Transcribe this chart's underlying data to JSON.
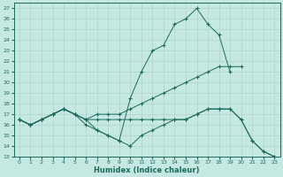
{
  "xlabel": "Humidex (Indice chaleur)",
  "xlim": [
    -0.5,
    23.5
  ],
  "ylim": [
    13,
    27.5
  ],
  "yticks": [
    13,
    14,
    15,
    16,
    17,
    18,
    19,
    20,
    21,
    22,
    23,
    24,
    25,
    26,
    27
  ],
  "xticks": [
    0,
    1,
    2,
    3,
    4,
    5,
    6,
    7,
    8,
    9,
    10,
    11,
    12,
    13,
    14,
    15,
    16,
    17,
    18,
    19,
    20,
    21,
    22,
    23
  ],
  "bg_color": "#c6e8e2",
  "line_color": "#1a6b5a",
  "grid_color": "#b0d4cc",
  "line1_x": [
    0,
    1,
    2,
    3,
    4,
    5,
    6,
    7,
    8,
    9,
    10,
    11,
    12,
    13,
    14,
    15,
    16,
    17,
    18,
    19
  ],
  "line1_y": [
    16.5,
    16.0,
    16.5,
    17.0,
    17.5,
    17.0,
    16.5,
    15.5,
    15.0,
    14.5,
    18.5,
    21.0,
    23.0,
    23.5,
    25.5,
    26.0,
    27.0,
    25.5,
    24.5,
    21.0
  ],
  "line2_x": [
    0,
    1,
    2,
    3,
    4,
    5,
    6,
    7,
    8,
    9,
    10,
    11,
    12,
    13,
    14,
    15,
    16,
    17,
    18,
    19,
    20
  ],
  "line2_y": [
    16.5,
    16.0,
    16.5,
    17.0,
    17.5,
    17.0,
    16.5,
    17.0,
    17.0,
    17.0,
    17.5,
    18.0,
    18.5,
    19.0,
    19.5,
    20.0,
    20.5,
    21.0,
    21.5,
    21.5,
    21.5
  ],
  "line3_x": [
    0,
    1,
    2,
    3,
    4,
    5,
    6,
    7,
    8,
    9,
    10,
    11,
    12,
    13,
    14,
    15,
    16,
    17,
    18,
    19,
    20,
    21,
    22,
    23
  ],
  "line3_y": [
    16.5,
    16.0,
    16.5,
    17.0,
    17.5,
    17.0,
    16.5,
    16.5,
    16.5,
    16.5,
    16.5,
    16.5,
    16.5,
    16.5,
    16.5,
    16.5,
    17.0,
    17.5,
    17.5,
    17.5,
    16.5,
    14.5,
    13.5,
    13.0
  ],
  "line4_x": [
    0,
    1,
    2,
    3,
    4,
    5,
    6,
    7,
    8,
    9,
    10,
    11,
    12,
    13,
    14,
    15,
    16,
    17,
    18,
    19,
    20,
    21,
    22,
    23
  ],
  "line4_y": [
    16.5,
    16.0,
    16.5,
    17.0,
    17.5,
    17.0,
    16.0,
    15.5,
    15.0,
    14.5,
    14.0,
    15.0,
    15.5,
    16.0,
    16.5,
    16.5,
    17.0,
    17.5,
    17.5,
    17.5,
    16.5,
    14.5,
    13.5,
    13.0
  ],
  "figsize": [
    3.2,
    2.0
  ],
  "dpi": 100
}
